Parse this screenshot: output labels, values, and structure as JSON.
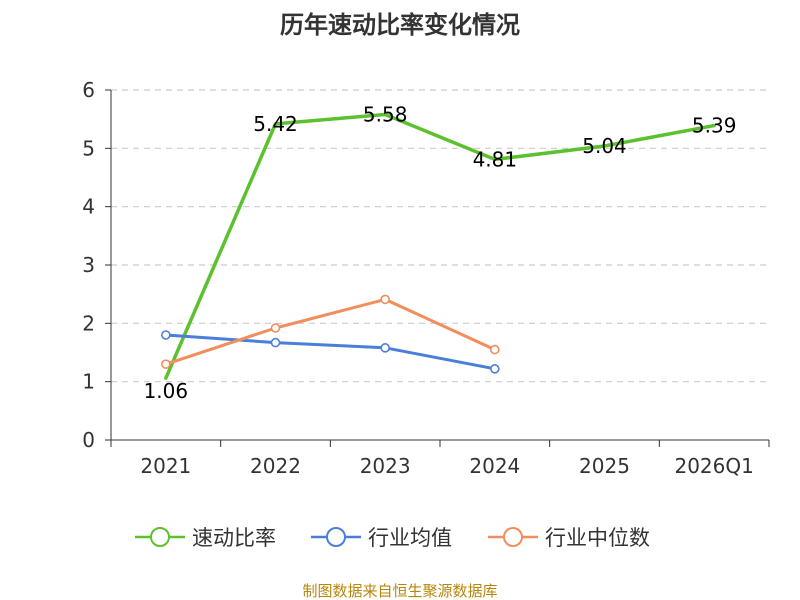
{
  "chart_data": {
    "type": "line",
    "title": "历年速动比率变化情况",
    "categories": [
      "2021",
      "2022",
      "2023",
      "2024",
      "2025",
      "2026Q1"
    ],
    "ylim": [
      0,
      6
    ],
    "yticks": [
      "0",
      "1",
      "2",
      "3",
      "4",
      "5",
      "6"
    ],
    "grid": true,
    "legend_position": "bottom",
    "series": [
      {
        "name": "速动比率",
        "color": "#5cc12e",
        "values": [
          1.06,
          5.42,
          5.58,
          4.81,
          5.04,
          5.39
        ],
        "labels": [
          "1.06",
          "5.42",
          "5.58",
          "4.81",
          "5.04",
          "5.39"
        ]
      },
      {
        "name": "行业均值",
        "color": "#4a7fd9",
        "values": [
          1.8,
          1.67,
          1.58,
          1.22,
          null,
          null
        ]
      },
      {
        "name": "行业中位数",
        "color": "#f28e5c",
        "values": [
          1.3,
          1.92,
          2.41,
          1.55,
          null,
          null
        ]
      }
    ]
  },
  "source": "制图数据来自恒生聚源数据库"
}
